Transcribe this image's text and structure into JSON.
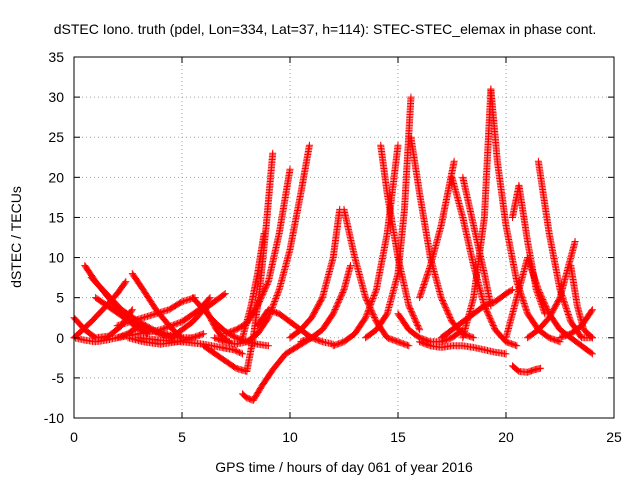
{
  "chart_data": {
    "type": "scatter",
    "title": "dSTEC Iono. truth (pdel, Lon=334, Lat=37, h=114): STEC-STEC_elemax in phase cont.",
    "xlabel": "GPS time / hours of day 061 of year 2016",
    "ylabel": "dSTEC  / TECUs",
    "xlim": [
      0,
      25
    ],
    "ylim": [
      -10,
      35
    ],
    "xticks": [
      "0",
      "5",
      "10",
      "15",
      "20",
      "25"
    ],
    "yticks": [
      "-10",
      "-5",
      "0",
      "5",
      "10",
      "15",
      "20",
      "25",
      "30",
      "35"
    ],
    "grid": true,
    "marker": "+",
    "color": "#ff0000",
    "series": [
      {
        "x": [
          0.0,
          0.5,
          1.0,
          1.6,
          2.2,
          2.7
        ],
        "y": [
          2.5,
          1.0,
          0.0,
          0.2,
          1.5,
          3.5
        ]
      },
      {
        "x": [
          0.5,
          1.0,
          1.6,
          2.2,
          2.8,
          3.4
        ],
        "y": [
          9.0,
          7.0,
          5.0,
          3.0,
          1.5,
          0.5
        ]
      },
      {
        "x": [
          0.8,
          1.5,
          2.2,
          3.0,
          3.8,
          4.6
        ],
        "y": [
          7.5,
          5.5,
          3.5,
          2.0,
          0.8,
          0.2
        ]
      },
      {
        "x": [
          1.0,
          1.8,
          2.6,
          3.5,
          4.3,
          5.0,
          5.5
        ],
        "y": [
          5.0,
          3.5,
          2.0,
          1.0,
          0.2,
          0.0,
          0.0
        ]
      },
      {
        "x": [
          0.0,
          0.8,
          1.5,
          2.0,
          2.4
        ],
        "y": [
          0.0,
          2.0,
          4.0,
          5.5,
          7.0
        ]
      },
      {
        "x": [
          0.0,
          0.5,
          1.0,
          1.5,
          2.0,
          2.5,
          3.0
        ],
        "y": [
          0.0,
          -0.3,
          -0.5,
          -0.3,
          0.0,
          0.5,
          1.5
        ]
      },
      {
        "x": [
          2.7,
          3.2,
          3.8,
          4.5,
          5.0
        ],
        "y": [
          8.0,
          6.0,
          3.5,
          1.2,
          0.0
        ]
      },
      {
        "x": [
          2.0,
          3.0,
          4.0,
          5.0,
          5.8,
          6.3
        ],
        "y": [
          0.0,
          0.5,
          1.0,
          2.0,
          3.5,
          5.0
        ]
      },
      {
        "x": [
          2.0,
          2.6,
          3.2,
          3.8,
          4.4,
          5.0,
          5.6
        ],
        "y": [
          1.5,
          2.0,
          2.5,
          3.0,
          3.5,
          4.5,
          5.0
        ]
      },
      {
        "x": [
          2.5,
          3.2,
          4.0,
          4.8,
          5.5,
          6.0
        ],
        "y": [
          0.0,
          -0.5,
          -0.8,
          -0.5,
          0.0,
          0.5
        ]
      },
      {
        "x": [
          3.0,
          4.0,
          5.0,
          6.0,
          6.8,
          7.4,
          7.8
        ],
        "y": [
          0.0,
          -0.3,
          -0.5,
          -0.8,
          -1.2,
          -1.5,
          -2.0
        ]
      },
      {
        "x": [
          4.5,
          5.0,
          5.5,
          6.0,
          6.5,
          7.0
        ],
        "y": [
          0.0,
          1.0,
          2.0,
          3.5,
          4.5,
          5.5
        ]
      },
      {
        "x": [
          5.5,
          6.0,
          6.5,
          7.0,
          7.5,
          8.0,
          8.5,
          9.0
        ],
        "y": [
          5.0,
          3.5,
          2.0,
          0.8,
          0.0,
          -0.5,
          -0.8,
          -1.0
        ]
      },
      {
        "x": [
          6.0,
          6.3,
          6.6,
          6.9,
          7.2
        ],
        "y": [
          4.0,
          2.5,
          1.0,
          0.0,
          -0.5
        ]
      },
      {
        "x": [
          6.0,
          6.8,
          7.5,
          8.0,
          8.3,
          8.6,
          8.9,
          9.2
        ],
        "y": [
          -1.0,
          -2.5,
          -3.8,
          -4.2,
          0.0,
          6.0,
          14.0,
          23.0
        ]
      },
      {
        "x": [
          6.5,
          7.0,
          7.5,
          8.0,
          8.5,
          9.0,
          9.5,
          10.0,
          10.5,
          10.9
        ],
        "y": [
          0.0,
          -0.5,
          -0.8,
          -0.5,
          0.5,
          2.5,
          6.0,
          11.0,
          18.0,
          24.0
        ]
      },
      {
        "x": [
          7.0,
          7.5,
          8.0,
          8.5,
          9.0,
          9.5,
          10.0
        ],
        "y": [
          0.5,
          1.0,
          1.8,
          4.0,
          7.0,
          13.0,
          21.0
        ]
      },
      {
        "x": [
          7.8,
          8.2,
          8.5,
          8.8
        ],
        "y": [
          0.0,
          4.0,
          8.0,
          13.0
        ]
      },
      {
        "x": [
          7.8,
          8.0,
          8.3,
          8.7,
          9.2,
          9.8,
          10.4,
          11.0
        ],
        "y": [
          -7.0,
          -7.5,
          -7.8,
          -6.0,
          -4.0,
          -2.0,
          -1.0,
          0.0
        ]
      },
      {
        "x": [
          8.5,
          9.0,
          9.5,
          10.0,
          10.5,
          11.0,
          11.5,
          12.0
        ],
        "y": [
          1.5,
          3.5,
          3.0,
          2.0,
          1.0,
          0.0,
          -0.5,
          -0.8
        ]
      },
      {
        "x": [
          10.0,
          10.5,
          11.0,
          11.5,
          12.0,
          12.3
        ],
        "y": [
          0.0,
          1.0,
          2.5,
          5.0,
          10.0,
          16.0
        ]
      },
      {
        "x": [
          10.5,
          11.0,
          11.5,
          12.0,
          12.5,
          12.8
        ],
        "y": [
          -0.5,
          0.0,
          1.0,
          3.0,
          6.0,
          9.0
        ]
      },
      {
        "x": [
          12.5,
          13.0,
          13.5,
          14.0,
          14.5,
          15.0,
          15.5
        ],
        "y": [
          16.0,
          10.0,
          5.0,
          2.0,
          0.0,
          -0.5,
          -1.0
        ]
      },
      {
        "x": [
          12.0,
          12.5,
          13.0,
          13.5,
          14.0,
          14.5,
          15.0
        ],
        "y": [
          -1.0,
          -0.5,
          0.5,
          2.5,
          6.0,
          13.0,
          24.0
        ]
      },
      {
        "x": [
          13.5,
          14.0,
          14.5,
          15.0,
          15.3,
          15.6
        ],
        "y": [
          0.0,
          1.0,
          3.0,
          8.0,
          16.0,
          30.0
        ]
      },
      {
        "x": [
          14.2,
          14.5,
          15.0,
          15.5,
          16.0
        ],
        "y": [
          24.0,
          18.0,
          10.0,
          4.0,
          1.0
        ]
      },
      {
        "x": [
          15.0,
          15.5,
          16.0,
          16.5,
          17.0,
          17.5,
          18.0
        ],
        "y": [
          3.0,
          1.0,
          0.0,
          -0.5,
          -0.5,
          0.0,
          1.0
        ]
      },
      {
        "x": [
          15.6,
          16.0,
          16.5,
          17.0,
          17.5,
          18.0,
          18.5
        ],
        "y": [
          25.0,
          18.0,
          10.0,
          5.0,
          2.0,
          0.5,
          0.0
        ]
      },
      {
        "x": [
          16.0,
          16.5,
          17.0,
          17.3,
          17.6
        ],
        "y": [
          5.0,
          9.0,
          14.0,
          18.0,
          22.0
        ]
      },
      {
        "x": [
          16.0,
          16.5,
          17.0,
          17.5,
          18.0,
          18.5,
          19.0,
          19.5,
          20.0
        ],
        "y": [
          -0.5,
          -1.0,
          -1.2,
          -1.0,
          -1.0,
          -1.2,
          -1.5,
          -1.8,
          -2.0
        ]
      },
      {
        "x": [
          17.5,
          18.0,
          18.5,
          19.0,
          19.5,
          20.0,
          20.5
        ],
        "y": [
          20.0,
          15.0,
          9.0,
          4.0,
          1.0,
          -0.5,
          -1.0
        ]
      },
      {
        "x": [
          18.0,
          18.5,
          19.0,
          19.3
        ],
        "y": [
          20.0,
          14.0,
          8.0,
          4.0
        ]
      },
      {
        "x": [
          17.0,
          17.5,
          18.0,
          18.5,
          19.0,
          19.5,
          20.0,
          20.3
        ],
        "y": [
          0.0,
          1.0,
          2.0,
          3.0,
          4.0,
          4.5,
          5.5,
          6.0
        ]
      },
      {
        "x": [
          18.0,
          18.5,
          19.0,
          19.3
        ],
        "y": [
          0.0,
          5.0,
          15.0,
          31.0
        ]
      },
      {
        "x": [
          19.3,
          19.6,
          20.0,
          20.5,
          21.0,
          21.5,
          22.0,
          22.5
        ],
        "y": [
          31.0,
          22.0,
          14.0,
          7.0,
          3.0,
          1.0,
          0.0,
          -0.5
        ]
      },
      {
        "x": [
          20.0,
          20.5,
          21.0,
          21.5,
          22.0,
          22.5,
          23.0,
          23.5,
          24.0
        ],
        "y": [
          0.0,
          5.0,
          10.0,
          6.0,
          3.0,
          1.0,
          0.0,
          -1.0,
          -2.0
        ]
      },
      {
        "x": [
          20.3,
          20.6,
          21.0,
          21.4,
          21.8
        ],
        "y": [
          15.0,
          19.0,
          12.0,
          6.0,
          3.0
        ]
      },
      {
        "x": [
          20.3,
          20.6,
          21.0,
          21.3,
          21.6
        ],
        "y": [
          -3.5,
          -4.2,
          -4.3,
          -4.0,
          -3.8
        ]
      },
      {
        "x": [
          21.5,
          22.0,
          22.5,
          23.0,
          23.5,
          24.0
        ],
        "y": [
          22.0,
          13.0,
          6.0,
          2.0,
          0.0,
          0.0
        ]
      },
      {
        "x": [
          21.0,
          21.5,
          22.0,
          22.5,
          22.8,
          23.2
        ],
        "y": [
          0.0,
          1.0,
          2.5,
          5.0,
          8.0,
          12.0
        ]
      },
      {
        "x": [
          23.0,
          23.3,
          23.6,
          24.0
        ],
        "y": [
          9.0,
          4.0,
          1.0,
          0.0
        ]
      },
      {
        "x": [
          22.5,
          23.0,
          23.5,
          24.0
        ],
        "y": [
          0.0,
          0.5,
          1.5,
          3.5
        ]
      }
    ]
  }
}
